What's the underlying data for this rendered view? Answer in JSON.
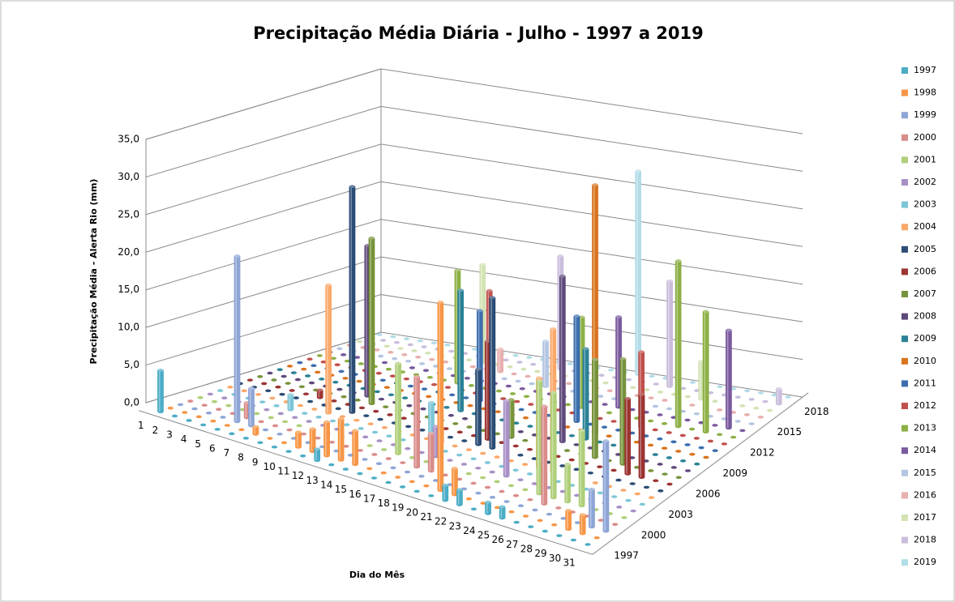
{
  "chart_data": {
    "type": "bar3d",
    "title": "Precipitação Média Diária - Julho - 1997 a 2019",
    "y_label": "Precipitação Média - Alerta Rio (mm)",
    "x_label": "Dia do Mês",
    "categories": [
      "1",
      "2",
      "3",
      "4",
      "5",
      "6",
      "7",
      "8",
      "9",
      "10",
      "11",
      "12",
      "13",
      "14",
      "15",
      "16",
      "17",
      "18",
      "19",
      "20",
      "21",
      "22",
      "23",
      "24",
      "25",
      "26",
      "27",
      "28",
      "29",
      "30",
      "31"
    ],
    "z_categories": [
      "1997",
      null,
      null,
      "2000",
      null,
      null,
      "2003",
      null,
      null,
      "2006",
      null,
      null,
      "2009",
      null,
      null,
      "2012",
      null,
      null,
      "2015",
      null,
      null,
      "2018",
      null
    ],
    "ylim": [
      0,
      35
    ],
    "yticks": [
      {
        "value": 0,
        "label": "0,0"
      },
      {
        "value": 5,
        "label": "5,0"
      },
      {
        "value": 10,
        "label": "10,0"
      },
      {
        "value": 15,
        "label": "15,0"
      },
      {
        "value": 20,
        "label": "20,0"
      },
      {
        "value": 25,
        "label": "25,0"
      },
      {
        "value": 30,
        "label": "30,0"
      },
      {
        "value": 35,
        "label": "35,0"
      }
    ],
    "grid": true,
    "legend": "right",
    "series": [
      {
        "name": "1997",
        "color": "#4BACC6",
        "values": [
          5.5,
          0,
          0,
          0,
          0,
          0,
          0,
          0,
          0,
          0,
          0,
          1.5,
          0,
          0,
          0,
          0,
          0,
          0,
          0,
          0,
          2,
          2,
          0,
          1.5,
          1.5,
          0,
          0,
          0,
          0,
          0,
          0
        ]
      },
      {
        "name": "1998",
        "color": "#F79646",
        "values": [
          0,
          0,
          0,
          0,
          0,
          0,
          1,
          0,
          0,
          2,
          3,
          4.5,
          5.5,
          4.5,
          0,
          0,
          0,
          0,
          0,
          25,
          3.5,
          0,
          0,
          0,
          0,
          0,
          0,
          0,
          2.5,
          2.5,
          0
        ]
      },
      {
        "name": "1999",
        "color": "#8EA5D6",
        "values": [
          0,
          0,
          0,
          0,
          22,
          5,
          0,
          0,
          0,
          0,
          0,
          0,
          0,
          0,
          0,
          0,
          0,
          0,
          0,
          0,
          0,
          0,
          0,
          0,
          0,
          0,
          0,
          0,
          0,
          5,
          12
        ]
      },
      {
        "name": "2000",
        "color": "#D98C8A",
        "values": [
          0,
          0,
          0,
          0,
          2,
          0,
          0,
          0,
          0,
          0,
          0,
          0,
          0,
          0,
          0,
          0,
          12,
          5,
          0,
          0,
          0,
          0,
          0,
          0,
          0,
          13,
          0,
          0,
          0,
          0,
          0
        ]
      },
      {
        "name": "2001",
        "color": "#AFCF7A",
        "values": [
          0,
          0,
          0,
          0,
          0,
          0,
          0,
          0,
          0,
          0,
          0,
          0,
          0,
          0,
          12,
          0,
          0,
          0,
          0,
          0,
          0,
          0,
          0,
          0,
          15,
          14,
          5,
          10,
          0,
          0,
          0
        ]
      },
      {
        "name": "2002",
        "color": "#A890C6",
        "values": [
          0,
          0,
          0,
          0,
          0,
          0,
          0,
          0,
          0,
          0,
          0,
          0,
          0,
          0,
          0,
          0,
          4,
          0,
          0,
          0,
          0,
          10,
          0,
          0,
          0,
          0,
          0,
          0,
          0,
          0,
          0
        ]
      },
      {
        "name": "2003",
        "color": "#7DC6D8",
        "values": [
          0,
          0,
          0,
          0,
          0,
          2,
          0,
          0,
          0,
          0,
          0,
          0,
          0,
          0,
          0,
          6,
          0,
          0,
          0,
          0,
          0,
          0,
          0,
          0,
          0,
          0,
          0,
          0,
          0,
          0,
          0
        ]
      },
      {
        "name": "2004",
        "color": "#FAA86A",
        "values": [
          0,
          0,
          0,
          0,
          0,
          0,
          0,
          17,
          0,
          0,
          0,
          0,
          0,
          0,
          0,
          2,
          0,
          0,
          0,
          0,
          0,
          0,
          12,
          19,
          0,
          0,
          0,
          0,
          0,
          0,
          0
        ]
      },
      {
        "name": "2005",
        "color": "#2C4D75",
        "values": [
          0,
          0,
          0,
          0,
          0,
          0,
          0,
          0,
          30,
          0,
          0,
          0,
          0,
          0,
          0,
          0,
          0,
          10,
          20,
          0,
          0,
          0,
          0,
          0,
          0,
          0,
          0,
          0,
          0,
          0,
          0
        ]
      },
      {
        "name": "2006",
        "color": "#9B3432",
        "values": [
          0,
          0,
          0,
          0,
          0,
          1,
          0,
          0,
          0,
          0,
          0,
          0,
          0,
          0,
          0,
          0,
          0,
          13,
          0,
          0,
          0,
          0,
          0,
          0,
          0,
          0,
          0,
          10,
          11,
          0,
          0
        ]
      },
      {
        "name": "2007",
        "color": "#77933C",
        "values": [
          0,
          0,
          0,
          0,
          0,
          0,
          0,
          0,
          22,
          0,
          0,
          0,
          0,
          0,
          0,
          0,
          0,
          0,
          5,
          0,
          0,
          0,
          0,
          0,
          13,
          0,
          14,
          0,
          0,
          0,
          0
        ]
      },
      {
        "name": "2008",
        "color": "#5F497A",
        "values": [
          0,
          0,
          0,
          0,
          0,
          0,
          0,
          20,
          0,
          0,
          0,
          0,
          0,
          0,
          0,
          0,
          0,
          0,
          0,
          0,
          0,
          22,
          0,
          0,
          0,
          0,
          0,
          0,
          0,
          0,
          0
        ]
      },
      {
        "name": "2009",
        "color": "#2B8296",
        "values": [
          0,
          0,
          0,
          0,
          0,
          0,
          0,
          0,
          0,
          0,
          0,
          0,
          0,
          16,
          0,
          0,
          0,
          0,
          0,
          0,
          0,
          0,
          12,
          0,
          0,
          0,
          0,
          0,
          0,
          0,
          0
        ]
      },
      {
        "name": "2010",
        "color": "#D9741E",
        "values": [
          0,
          0,
          0,
          0,
          0,
          0,
          0,
          0,
          0,
          0,
          0,
          0,
          0,
          0,
          0,
          0,
          0,
          0,
          0,
          0,
          0,
          0,
          33,
          0,
          0,
          0,
          0,
          0,
          0,
          0,
          0
        ]
      },
      {
        "name": "2011",
        "color": "#3C6EAE",
        "values": [
          0,
          0,
          0,
          0,
          0,
          0,
          0,
          0,
          0,
          0,
          0,
          0,
          0,
          12,
          0,
          0,
          0,
          0,
          0,
          0,
          14,
          0,
          0,
          0,
          0,
          0,
          0,
          0,
          0,
          0,
          0
        ]
      },
      {
        "name": "2012",
        "color": "#C0504D",
        "values": [
          0,
          0,
          0,
          0,
          0,
          0,
          0,
          0,
          0,
          0,
          0,
          0,
          0,
          14,
          0,
          0,
          0,
          0,
          0,
          0,
          0,
          0,
          0,
          0,
          10,
          0,
          0,
          0,
          0,
          0,
          0
        ]
      },
      {
        "name": "2013",
        "color": "#8DB046",
        "values": [
          0,
          0,
          0,
          0,
          0,
          0,
          0,
          0,
          0,
          0,
          15,
          0,
          0,
          0,
          0,
          0,
          0,
          0,
          0,
          12,
          0,
          0,
          0,
          0,
          0,
          0,
          22,
          0,
          16,
          0,
          0
        ]
      },
      {
        "name": "2014",
        "color": "#7A5A9E",
        "values": [
          0,
          0,
          0,
          0,
          0,
          0,
          0,
          0,
          0,
          0,
          0,
          0,
          0,
          0,
          0,
          0,
          0,
          0,
          0,
          0,
          0,
          12,
          0,
          0,
          0,
          0,
          0,
          0,
          0,
          13,
          0
        ]
      },
      {
        "name": "2015",
        "color": "#B4C6E2",
        "values": [
          0,
          0,
          0,
          0,
          0,
          0,
          0,
          0,
          0,
          0,
          0,
          0,
          0,
          0,
          0,
          6,
          0,
          0,
          0,
          0,
          0,
          0,
          0,
          0,
          0,
          0,
          0,
          0,
          0,
          0,
          0
        ]
      },
      {
        "name": "2016",
        "color": "#E8B0AE",
        "values": [
          0,
          0,
          0,
          0,
          0,
          0,
          0,
          0,
          0,
          0,
          0,
          3,
          0,
          0,
          0,
          0,
          0,
          0,
          0,
          0,
          0,
          0,
          0,
          0,
          0,
          0,
          0,
          0,
          0,
          0,
          0
        ]
      },
      {
        "name": "2017",
        "color": "#D3E3B4",
        "values": [
          0,
          0,
          0,
          0,
          0,
          0,
          0,
          0,
          0,
          13,
          0,
          0,
          0,
          0,
          0,
          0,
          0,
          0,
          0,
          0,
          0,
          0,
          0,
          0,
          0,
          5,
          0,
          0,
          0,
          0,
          0
        ]
      },
      {
        "name": "2018",
        "color": "#CABEDC",
        "values": [
          0,
          0,
          0,
          0,
          0,
          0,
          0,
          0,
          0,
          0,
          0,
          0,
          0,
          0,
          15,
          0,
          0,
          0,
          0,
          0,
          0,
          0,
          14,
          0,
          0,
          0,
          0,
          0,
          0,
          0,
          2
        ]
      },
      {
        "name": "2019",
        "color": "#B3DDE8",
        "values": [
          0,
          0,
          0,
          0,
          0,
          0,
          0,
          0,
          0,
          0,
          0,
          0,
          0,
          0,
          0,
          0,
          0,
          0,
          0,
          27,
          0,
          0,
          0,
          0,
          0,
          0,
          0,
          0,
          0,
          0,
          0
        ]
      }
    ]
  }
}
